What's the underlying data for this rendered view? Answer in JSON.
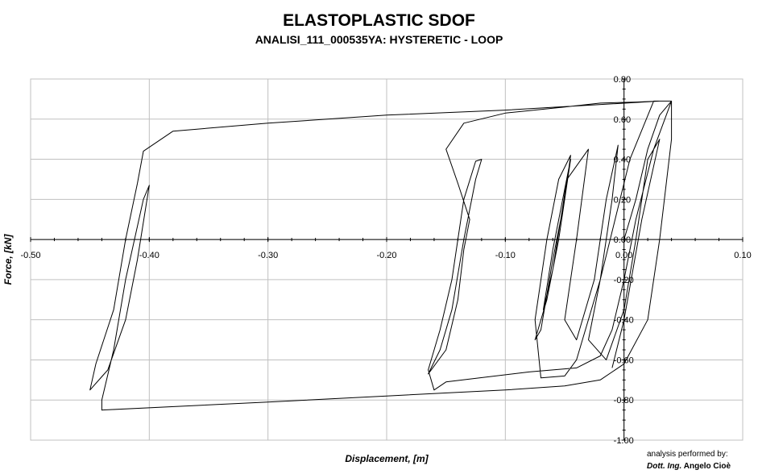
{
  "chart_data": {
    "type": "line",
    "title": "ELASTOPLASTIC SDOF",
    "subtitle": "ANALISI_111_000535YA: HYSTERETIC - LOOP",
    "xlabel": "Displacement, [m]",
    "ylabel": "Force, [kN]",
    "xlim": [
      -0.5,
      0.1
    ],
    "ylim": [
      -1.0,
      0.8
    ],
    "grid": true,
    "xticks": [
      "-0.50",
      "-0.40",
      "-0.30",
      "-0.20",
      "-0.10",
      "0.00",
      "0.10"
    ],
    "yticks": [
      "-1.00",
      "-0.80",
      "-0.60",
      "-0.40",
      "-0.20",
      "0.00",
      "0.20",
      "0.40",
      "0.60",
      "0.80"
    ],
    "series": [
      {
        "values": [
          [
            0.0,
            0.0
          ],
          [
            0.01,
            0.2
          ],
          [
            0.02,
            0.45
          ],
          [
            0.03,
            0.62
          ],
          [
            0.04,
            0.69
          ],
          [
            0.025,
            0.45
          ],
          [
            0.01,
            0.1
          ],
          [
            0.0,
            -0.2
          ],
          [
            -0.01,
            -0.45
          ],
          [
            -0.02,
            -0.58
          ],
          [
            -0.04,
            -0.64
          ],
          [
            -0.08,
            -0.66
          ],
          [
            -0.15,
            -0.71
          ],
          [
            -0.16,
            -0.75
          ],
          [
            -0.165,
            -0.65
          ],
          [
            -0.155,
            -0.45
          ],
          [
            -0.145,
            -0.2
          ],
          [
            -0.14,
            0.0
          ],
          [
            -0.135,
            0.2
          ],
          [
            -0.125,
            0.39
          ],
          [
            -0.12,
            0.4
          ],
          [
            -0.125,
            0.3
          ],
          [
            -0.135,
            0.0
          ],
          [
            -0.145,
            -0.35
          ],
          [
            -0.155,
            -0.55
          ],
          [
            -0.165,
            -0.67
          ],
          [
            -0.15,
            -0.55
          ],
          [
            -0.14,
            -0.3
          ],
          [
            -0.135,
            -0.05
          ],
          [
            -0.13,
            0.1
          ],
          [
            -0.14,
            0.28
          ],
          [
            -0.15,
            0.45
          ],
          [
            -0.135,
            0.58
          ],
          [
            -0.1,
            0.63
          ],
          [
            -0.05,
            0.66
          ],
          [
            -0.02,
            0.68
          ],
          [
            0.01,
            0.685
          ],
          [
            0.03,
            0.69
          ],
          [
            -0.1,
            0.645
          ],
          [
            -0.2,
            0.62
          ],
          [
            -0.3,
            0.58
          ],
          [
            -0.38,
            0.54
          ],
          [
            -0.405,
            0.44
          ],
          [
            -0.41,
            0.28
          ],
          [
            -0.42,
            0.0
          ],
          [
            -0.43,
            -0.35
          ],
          [
            -0.445,
            -0.62
          ],
          [
            -0.45,
            -0.75
          ],
          [
            -0.435,
            -0.65
          ],
          [
            -0.42,
            -0.4
          ],
          [
            -0.41,
            -0.1
          ],
          [
            -0.4,
            0.27
          ],
          [
            -0.405,
            0.2
          ],
          [
            -0.42,
            -0.2
          ],
          [
            -0.43,
            -0.55
          ],
          [
            -0.44,
            -0.8
          ],
          [
            -0.44,
            -0.85
          ],
          [
            -0.3,
            -0.81
          ],
          [
            -0.2,
            -0.78
          ],
          [
            -0.1,
            -0.75
          ],
          [
            -0.05,
            -0.73
          ],
          [
            -0.02,
            -0.7
          ],
          [
            0.0,
            -0.62
          ],
          [
            0.02,
            -0.4
          ],
          [
            0.03,
            0.0
          ],
          [
            0.04,
            0.5
          ],
          [
            0.04,
            0.69
          ],
          [
            0.025,
            0.69
          ],
          [
            0.005,
            0.4
          ],
          [
            -0.02,
            -0.2
          ],
          [
            -0.04,
            -0.6
          ],
          [
            -0.05,
            -0.68
          ],
          [
            -0.07,
            -0.69
          ],
          [
            -0.075,
            -0.4
          ],
          [
            -0.065,
            0.0
          ],
          [
            -0.055,
            0.3
          ],
          [
            -0.045,
            0.42
          ],
          [
            -0.05,
            0.2
          ],
          [
            -0.06,
            -0.1
          ],
          [
            -0.07,
            -0.45
          ],
          [
            -0.075,
            -0.5
          ],
          [
            -0.065,
            -0.3
          ],
          [
            -0.055,
            0.0
          ],
          [
            -0.045,
            0.4
          ],
          [
            -0.05,
            0.25
          ],
          [
            -0.06,
            -0.05
          ],
          [
            -0.068,
            -0.35
          ],
          [
            -0.06,
            -0.15
          ],
          [
            -0.052,
            0.15
          ],
          [
            -0.048,
            0.3
          ],
          [
            -0.03,
            0.45
          ],
          [
            -0.04,
            0.0
          ],
          [
            -0.05,
            -0.4
          ],
          [
            -0.04,
            -0.5
          ],
          [
            -0.025,
            -0.2
          ],
          [
            -0.015,
            0.2
          ],
          [
            -0.005,
            0.47
          ],
          [
            -0.01,
            0.2
          ],
          [
            -0.02,
            -0.2
          ],
          [
            -0.03,
            -0.5
          ],
          [
            -0.015,
            -0.6
          ],
          [
            0.0,
            -0.35
          ],
          [
            0.01,
            0.0
          ],
          [
            0.02,
            0.4
          ],
          [
            0.03,
            0.5
          ],
          [
            0.015,
            0.1
          ],
          [
            0.0,
            -0.4
          ],
          [
            -0.01,
            -0.64
          ]
        ]
      }
    ]
  },
  "credit": {
    "line1": "analysis performed by:",
    "line2_prefix": "Dott. Ing.",
    "line2_name": "Angelo Cioè"
  }
}
